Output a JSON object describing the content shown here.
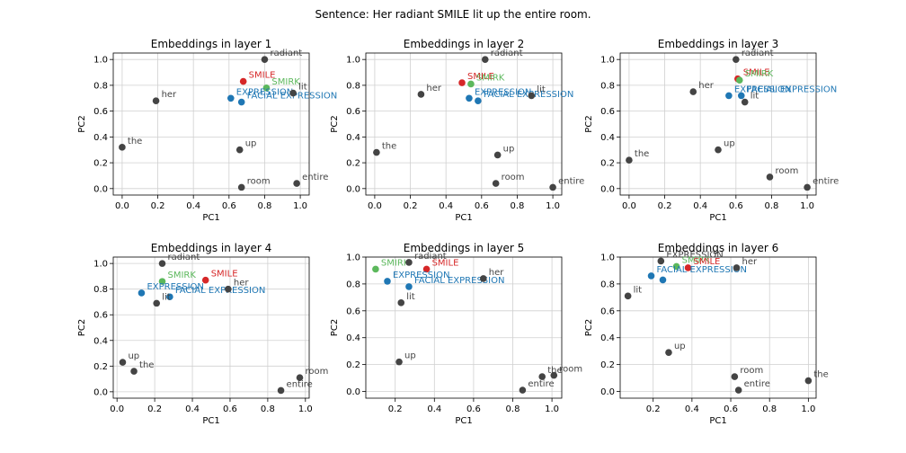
{
  "figure": {
    "suptitle": "Sentence: Her radiant SMILE lit up the entire room."
  },
  "chart_data": [
    {
      "type": "scatter",
      "title": "Embeddings in layer 1",
      "xlabel": "PC1",
      "ylabel": "PC2",
      "xlim": [
        -0.05,
        1.05
      ],
      "ylim": [
        -0.05,
        1.05
      ],
      "xticks": [
        "0.0",
        "0.2",
        "0.4",
        "0.6",
        "0.8",
        "1.0"
      ],
      "yticks": [
        "0.0",
        "0.2",
        "0.4",
        "0.6",
        "0.8",
        "1.0"
      ],
      "xtick_values": [
        0,
        0.2,
        0.4,
        0.6,
        0.8,
        1.0
      ],
      "ytick_values": [
        0,
        0.2,
        0.4,
        0.6,
        0.8,
        1.0
      ],
      "grid": true,
      "points": [
        {
          "label": "radiant",
          "x": 0.8,
          "y": 1.0,
          "color": "#444444"
        },
        {
          "label": "SMILE",
          "x": 0.68,
          "y": 0.83,
          "color": "#d62728"
        },
        {
          "label": "SMIRK",
          "x": 0.81,
          "y": 0.78,
          "color": "#5cb85c"
        },
        {
          "label": "EXPRESSION",
          "x": 0.61,
          "y": 0.7,
          "color": "#1f77b4"
        },
        {
          "label": "FACIAL EXPRESSION",
          "x": 0.67,
          "y": 0.67,
          "color": "#1f77b4"
        },
        {
          "label": "lit",
          "x": 0.96,
          "y": 0.74,
          "color": "#444444"
        },
        {
          "label": "her",
          "x": 0.19,
          "y": 0.68,
          "color": "#444444"
        },
        {
          "label": "the",
          "x": 0.0,
          "y": 0.32,
          "color": "#444444"
        },
        {
          "label": "up",
          "x": 0.66,
          "y": 0.3,
          "color": "#444444"
        },
        {
          "label": "room",
          "x": 0.67,
          "y": 0.01,
          "color": "#444444"
        },
        {
          "label": "entire",
          "x": 0.98,
          "y": 0.04,
          "color": "#444444"
        }
      ]
    },
    {
      "type": "scatter",
      "title": "Embeddings in layer 2",
      "xlabel": "PC1",
      "ylabel": "PC2",
      "xlim": [
        -0.05,
        1.05
      ],
      "ylim": [
        -0.05,
        1.05
      ],
      "xticks": [
        "0.0",
        "0.2",
        "0.4",
        "0.6",
        "0.8",
        "1.0"
      ],
      "yticks": [
        "0.0",
        "0.2",
        "0.4",
        "0.6",
        "0.8",
        "1.0"
      ],
      "xtick_values": [
        0,
        0.2,
        0.4,
        0.6,
        0.8,
        1.0
      ],
      "ytick_values": [
        0,
        0.2,
        0.4,
        0.6,
        0.8,
        1.0
      ],
      "grid": true,
      "points": [
        {
          "label": "radiant",
          "x": 0.62,
          "y": 1.0,
          "color": "#444444"
        },
        {
          "label": "SMILE",
          "x": 0.49,
          "y": 0.82,
          "color": "#d62728"
        },
        {
          "label": "SMIRK",
          "x": 0.54,
          "y": 0.81,
          "color": "#5cb85c"
        },
        {
          "label": "EXPRESSION",
          "x": 0.53,
          "y": 0.7,
          "color": "#1f77b4"
        },
        {
          "label": "FACIAL EXPRESSION",
          "x": 0.58,
          "y": 0.68,
          "color": "#1f77b4"
        },
        {
          "label": "lit",
          "x": 0.88,
          "y": 0.72,
          "color": "#444444"
        },
        {
          "label": "her",
          "x": 0.26,
          "y": 0.73,
          "color": "#444444"
        },
        {
          "label": "the",
          "x": 0.01,
          "y": 0.28,
          "color": "#444444"
        },
        {
          "label": "up",
          "x": 0.69,
          "y": 0.26,
          "color": "#444444"
        },
        {
          "label": "room",
          "x": 0.68,
          "y": 0.04,
          "color": "#444444"
        },
        {
          "label": "entire",
          "x": 1.0,
          "y": 0.01,
          "color": "#444444"
        }
      ]
    },
    {
      "type": "scatter",
      "title": "Embeddings in layer 3",
      "xlabel": "PC1",
      "ylabel": "PC2",
      "xlim": [
        -0.05,
        1.05
      ],
      "ylim": [
        -0.05,
        1.05
      ],
      "xticks": [
        "0.0",
        "0.2",
        "0.4",
        "0.6",
        "0.8",
        "1.0"
      ],
      "yticks": [
        "0.0",
        "0.2",
        "0.4",
        "0.6",
        "0.8",
        "1.0"
      ],
      "xtick_values": [
        0,
        0.2,
        0.4,
        0.6,
        0.8,
        1.0
      ],
      "ytick_values": [
        0,
        0.2,
        0.4,
        0.6,
        0.8,
        1.0
      ],
      "grid": true,
      "points": [
        {
          "label": "radiant",
          "x": 0.6,
          "y": 1.0,
          "color": "#444444"
        },
        {
          "label": "SMILE",
          "x": 0.61,
          "y": 0.85,
          "color": "#d62728"
        },
        {
          "label": "SMIRK",
          "x": 0.62,
          "y": 0.84,
          "color": "#5cb85c"
        },
        {
          "label": "EXPRESSION",
          "x": 0.56,
          "y": 0.72,
          "color": "#1f77b4"
        },
        {
          "label": "FACIAL EXPRESSION",
          "x": 0.63,
          "y": 0.72,
          "color": "#1f77b4"
        },
        {
          "label": "lit",
          "x": 0.65,
          "y": 0.67,
          "color": "#444444"
        },
        {
          "label": "her",
          "x": 0.36,
          "y": 0.75,
          "color": "#444444"
        },
        {
          "label": "the",
          "x": 0.0,
          "y": 0.22,
          "color": "#444444"
        },
        {
          "label": "up",
          "x": 0.5,
          "y": 0.3,
          "color": "#444444"
        },
        {
          "label": "room",
          "x": 0.79,
          "y": 0.09,
          "color": "#444444"
        },
        {
          "label": "entire",
          "x": 1.0,
          "y": 0.01,
          "color": "#444444"
        }
      ]
    },
    {
      "type": "scatter",
      "title": "Embeddings in layer 4",
      "xlabel": "PC1",
      "ylabel": "PC2",
      "xlim": [
        -0.02,
        1.02
      ],
      "ylim": [
        -0.05,
        1.05
      ],
      "xticks": [
        "0.0",
        "0.2",
        "0.4",
        "0.6",
        "0.8",
        "1.0"
      ],
      "yticks": [
        "0.0",
        "0.2",
        "0.4",
        "0.6",
        "0.8",
        "1.0"
      ],
      "xtick_values": [
        0,
        0.2,
        0.4,
        0.6,
        0.8,
        1.0
      ],
      "ytick_values": [
        0,
        0.2,
        0.4,
        0.6,
        0.8,
        1.0
      ],
      "grid": true,
      "points": [
        {
          "label": "radiant",
          "x": 0.24,
          "y": 1.0,
          "color": "#444444"
        },
        {
          "label": "SMILE",
          "x": 0.47,
          "y": 0.87,
          "color": "#d62728"
        },
        {
          "label": "SMIRK",
          "x": 0.24,
          "y": 0.86,
          "color": "#5cb85c"
        },
        {
          "label": "EXPRESSION",
          "x": 0.13,
          "y": 0.77,
          "color": "#1f77b4"
        },
        {
          "label": "FACIAL EXPRESSION",
          "x": 0.28,
          "y": 0.74,
          "color": "#1f77b4"
        },
        {
          "label": "her",
          "x": 0.59,
          "y": 0.8,
          "color": "#444444"
        },
        {
          "label": "lit",
          "x": 0.21,
          "y": 0.69,
          "color": "#444444"
        },
        {
          "label": "up",
          "x": 0.03,
          "y": 0.23,
          "color": "#444444"
        },
        {
          "label": "the",
          "x": 0.09,
          "y": 0.16,
          "color": "#444444"
        },
        {
          "label": "room",
          "x": 0.97,
          "y": 0.11,
          "color": "#444444"
        },
        {
          "label": "entire",
          "x": 0.87,
          "y": 0.01,
          "color": "#444444"
        }
      ]
    },
    {
      "type": "scatter",
      "title": "Embeddings in layer 5",
      "xlabel": "PC1",
      "ylabel": "PC2",
      "xlim": [
        0.05,
        1.05
      ],
      "ylim": [
        -0.05,
        1.0
      ],
      "xticks": [
        "0.2",
        "0.4",
        "0.6",
        "0.8",
        "1.0"
      ],
      "yticks": [
        "0.0",
        "0.2",
        "0.4",
        "0.6",
        "0.8",
        "1.0"
      ],
      "xtick_values": [
        0.2,
        0.4,
        0.6,
        0.8,
        1.0
      ],
      "ytick_values": [
        0,
        0.2,
        0.4,
        0.6,
        0.8,
        1.0
      ],
      "grid": true,
      "points": [
        {
          "label": "SMIRK",
          "x": 0.1,
          "y": 0.91,
          "color": "#5cb85c"
        },
        {
          "label": "radiant",
          "x": 0.27,
          "y": 0.96,
          "color": "#444444"
        },
        {
          "label": "SMILE",
          "x": 0.36,
          "y": 0.91,
          "color": "#d62728"
        },
        {
          "label": "EXPRESSION",
          "x": 0.16,
          "y": 0.82,
          "color": "#1f77b4"
        },
        {
          "label": "FACIAL EXPRESSION",
          "x": 0.27,
          "y": 0.78,
          "color": "#1f77b4"
        },
        {
          "label": "her",
          "x": 0.65,
          "y": 0.84,
          "color": "#444444"
        },
        {
          "label": "lit",
          "x": 0.23,
          "y": 0.66,
          "color": "#444444"
        },
        {
          "label": "up",
          "x": 0.22,
          "y": 0.22,
          "color": "#444444"
        },
        {
          "label": "the",
          "x": 0.95,
          "y": 0.11,
          "color": "#444444"
        },
        {
          "label": "room",
          "x": 1.01,
          "y": 0.12,
          "color": "#444444"
        },
        {
          "label": "entire",
          "x": 0.85,
          "y": 0.01,
          "color": "#444444"
        }
      ]
    },
    {
      "type": "scatter",
      "title": "Embeddings in layer 6",
      "xlabel": "PC1",
      "ylabel": "PC2",
      "xlim": [
        0.03,
        1.04
      ],
      "ylim": [
        -0.05,
        1.0
      ],
      "xticks": [
        "0.2",
        "0.4",
        "0.6",
        "0.8",
        "1.0"
      ],
      "yticks": [
        "0.0",
        "0.2",
        "0.4",
        "0.6",
        "0.8",
        "1.0"
      ],
      "xtick_values": [
        0.2,
        0.4,
        0.6,
        0.8,
        1.0
      ],
      "ytick_values": [
        0,
        0.2,
        0.4,
        0.6,
        0.8,
        1.0
      ],
      "grid": true,
      "points": [
        {
          "label": "EXPRESSION",
          "x": 0.24,
          "y": 0.97,
          "color": "#444444"
        },
        {
          "label": "SMIRK",
          "x": 0.32,
          "y": 0.93,
          "color": "#5cb85c"
        },
        {
          "label": "SMILE",
          "x": 0.38,
          "y": 0.92,
          "color": "#d62728"
        },
        {
          "label": "FACIAL EXPRESSION",
          "x": 0.19,
          "y": 0.86,
          "color": "#1f77b4"
        },
        {
          "label": "",
          "x": 0.25,
          "y": 0.83,
          "color": "#1f77b4"
        },
        {
          "label": "her",
          "x": 0.63,
          "y": 0.92,
          "color": "#444444"
        },
        {
          "label": "lit",
          "x": 0.07,
          "y": 0.71,
          "color": "#444444"
        },
        {
          "label": "up",
          "x": 0.28,
          "y": 0.29,
          "color": "#444444"
        },
        {
          "label": "room",
          "x": 0.62,
          "y": 0.11,
          "color": "#444444"
        },
        {
          "label": "entire",
          "x": 0.64,
          "y": 0.01,
          "color": "#444444"
        },
        {
          "label": "the",
          "x": 1.0,
          "y": 0.08,
          "color": "#444444"
        }
      ]
    }
  ]
}
